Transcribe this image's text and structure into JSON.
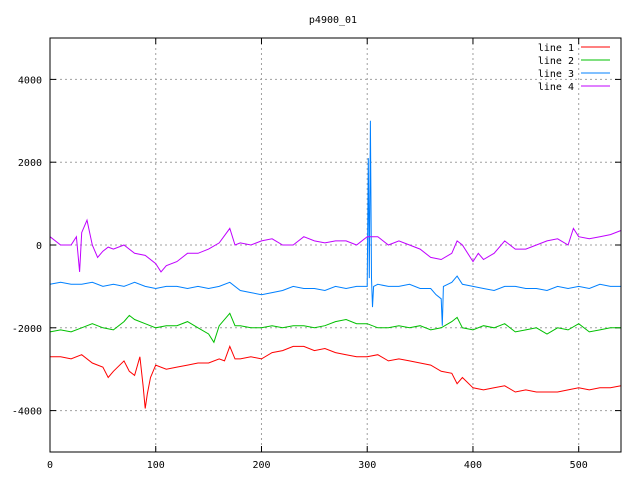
{
  "chart_data": {
    "type": "line",
    "title": "p4900_01",
    "xlabel": "",
    "ylabel": "",
    "xlim": [
      0,
      540
    ],
    "ylim": [
      -5000,
      5000
    ],
    "xticks": [
      0,
      100,
      200,
      300,
      400,
      500
    ],
    "yticks": [
      -4000,
      -2000,
      0,
      2000,
      4000
    ],
    "grid": true,
    "legend_position": "top-right",
    "series": [
      {
        "name": "line 1",
        "color": "#ff0000",
        "x": [
          0,
          10,
          20,
          30,
          40,
          50,
          55,
          60,
          70,
          75,
          80,
          85,
          88,
          90,
          92,
          95,
          100,
          110,
          120,
          130,
          140,
          150,
          160,
          165,
          170,
          175,
          180,
          190,
          200,
          210,
          220,
          230,
          240,
          250,
          260,
          270,
          280,
          290,
          300,
          310,
          320,
          330,
          340,
          350,
          360,
          370,
          380,
          385,
          390,
          400,
          410,
          420,
          430,
          440,
          450,
          460,
          470,
          480,
          490,
          500,
          510,
          520,
          530,
          540
        ],
        "y": [
          -2700,
          -2700,
          -2750,
          -2650,
          -2850,
          -2950,
          -3200,
          -3050,
          -2800,
          -3050,
          -3150,
          -2700,
          -3400,
          -3950,
          -3600,
          -3200,
          -2900,
          -3000,
          -2950,
          -2900,
          -2850,
          -2850,
          -2750,
          -2800,
          -2450,
          -2750,
          -2750,
          -2700,
          -2750,
          -2600,
          -2550,
          -2450,
          -2450,
          -2550,
          -2500,
          -2600,
          -2650,
          -2700,
          -2700,
          -2650,
          -2800,
          -2750,
          -2800,
          -2850,
          -2900,
          -3050,
          -3100,
          -3350,
          -3200,
          -3450,
          -3500,
          -3450,
          -3400,
          -3550,
          -3500,
          -3550,
          -3550,
          -3550,
          -3500,
          -3450,
          -3500,
          -3450,
          -3450,
          -3400
        ]
      },
      {
        "name": "line 2",
        "color": "#00c000",
        "x": [
          0,
          10,
          20,
          30,
          40,
          50,
          60,
          70,
          75,
          80,
          90,
          100,
          110,
          120,
          130,
          140,
          150,
          155,
          160,
          170,
          175,
          180,
          190,
          200,
          210,
          220,
          230,
          240,
          250,
          260,
          270,
          280,
          290,
          300,
          310,
          320,
          330,
          340,
          350,
          360,
          370,
          380,
          385,
          390,
          400,
          410,
          420,
          430,
          440,
          450,
          460,
          470,
          480,
          490,
          500,
          510,
          520,
          530,
          540
        ],
        "y": [
          -2100,
          -2050,
          -2100,
          -2000,
          -1900,
          -2000,
          -2050,
          -1850,
          -1700,
          -1800,
          -1900,
          -2000,
          -1950,
          -1950,
          -1850,
          -2000,
          -2150,
          -2350,
          -1950,
          -1650,
          -1950,
          -1950,
          -2000,
          -2000,
          -1950,
          -2000,
          -1950,
          -1950,
          -2000,
          -1950,
          -1850,
          -1800,
          -1900,
          -1900,
          -2000,
          -2000,
          -1950,
          -2000,
          -1950,
          -2050,
          -2000,
          -1850,
          -1750,
          -2000,
          -2050,
          -1950,
          -2000,
          -1900,
          -2100,
          -2050,
          -2000,
          -2150,
          -2000,
          -2050,
          -1900,
          -2100,
          -2050,
          -2000,
          -2000
        ]
      },
      {
        "name": "line 3",
        "color": "#0080ff",
        "x": [
          0,
          10,
          20,
          30,
          40,
          50,
          60,
          70,
          80,
          90,
          100,
          110,
          120,
          130,
          140,
          150,
          160,
          170,
          180,
          190,
          200,
          210,
          220,
          230,
          240,
          250,
          260,
          270,
          280,
          290,
          300,
          301,
          302,
          303,
          304,
          305,
          306,
          310,
          320,
          330,
          340,
          350,
          360,
          365,
          370,
          371,
          372,
          380,
          385,
          390,
          400,
          410,
          420,
          430,
          440,
          450,
          460,
          470,
          480,
          490,
          500,
          510,
          520,
          530,
          540
        ],
        "y": [
          -950,
          -900,
          -950,
          -950,
          -900,
          -1000,
          -950,
          -1000,
          -900,
          -1000,
          -1050,
          -1000,
          -1000,
          -1050,
          -1000,
          -1050,
          -1000,
          -900,
          -1100,
          -1150,
          -1200,
          -1150,
          -1100,
          -1000,
          -1050,
          -1050,
          -1100,
          -1000,
          -1050,
          -1000,
          -1000,
          2100,
          -800,
          3000,
          -800,
          -1500,
          -1000,
          -950,
          -1000,
          -1000,
          -950,
          -1050,
          -1050,
          -1200,
          -1300,
          -1950,
          -1000,
          -900,
          -750,
          -950,
          -1000,
          -1050,
          -1100,
          -1000,
          -1000,
          -1050,
          -1050,
          -1100,
          -1000,
          -1050,
          -1000,
          -1050,
          -950,
          -1000,
          -1000
        ]
      },
      {
        "name": "line 4",
        "color": "#c000ff",
        "x": [
          0,
          10,
          20,
          25,
          28,
          30,
          35,
          40,
          45,
          50,
          55,
          60,
          70,
          80,
          90,
          100,
          105,
          110,
          120,
          130,
          140,
          150,
          160,
          170,
          175,
          180,
          190,
          200,
          210,
          220,
          230,
          240,
          250,
          260,
          270,
          280,
          290,
          300,
          310,
          320,
          330,
          340,
          350,
          360,
          370,
          380,
          385,
          390,
          400,
          405,
          410,
          420,
          430,
          440,
          450,
          460,
          470,
          480,
          490,
          495,
          500,
          510,
          520,
          530,
          540
        ],
        "y": [
          200,
          0,
          0,
          200,
          -650,
          300,
          600,
          0,
          -300,
          -150,
          -50,
          -100,
          0,
          -200,
          -250,
          -450,
          -650,
          -500,
          -400,
          -200,
          -200,
          -100,
          50,
          400,
          0,
          50,
          0,
          100,
          150,
          0,
          0,
          200,
          100,
          50,
          100,
          100,
          0,
          200,
          200,
          0,
          100,
          0,
          -100,
          -300,
          -350,
          -200,
          100,
          0,
          -400,
          -200,
          -350,
          -200,
          100,
          -100,
          -100,
          0,
          100,
          150,
          0,
          400,
          200,
          150,
          200,
          250,
          350
        ]
      }
    ]
  }
}
